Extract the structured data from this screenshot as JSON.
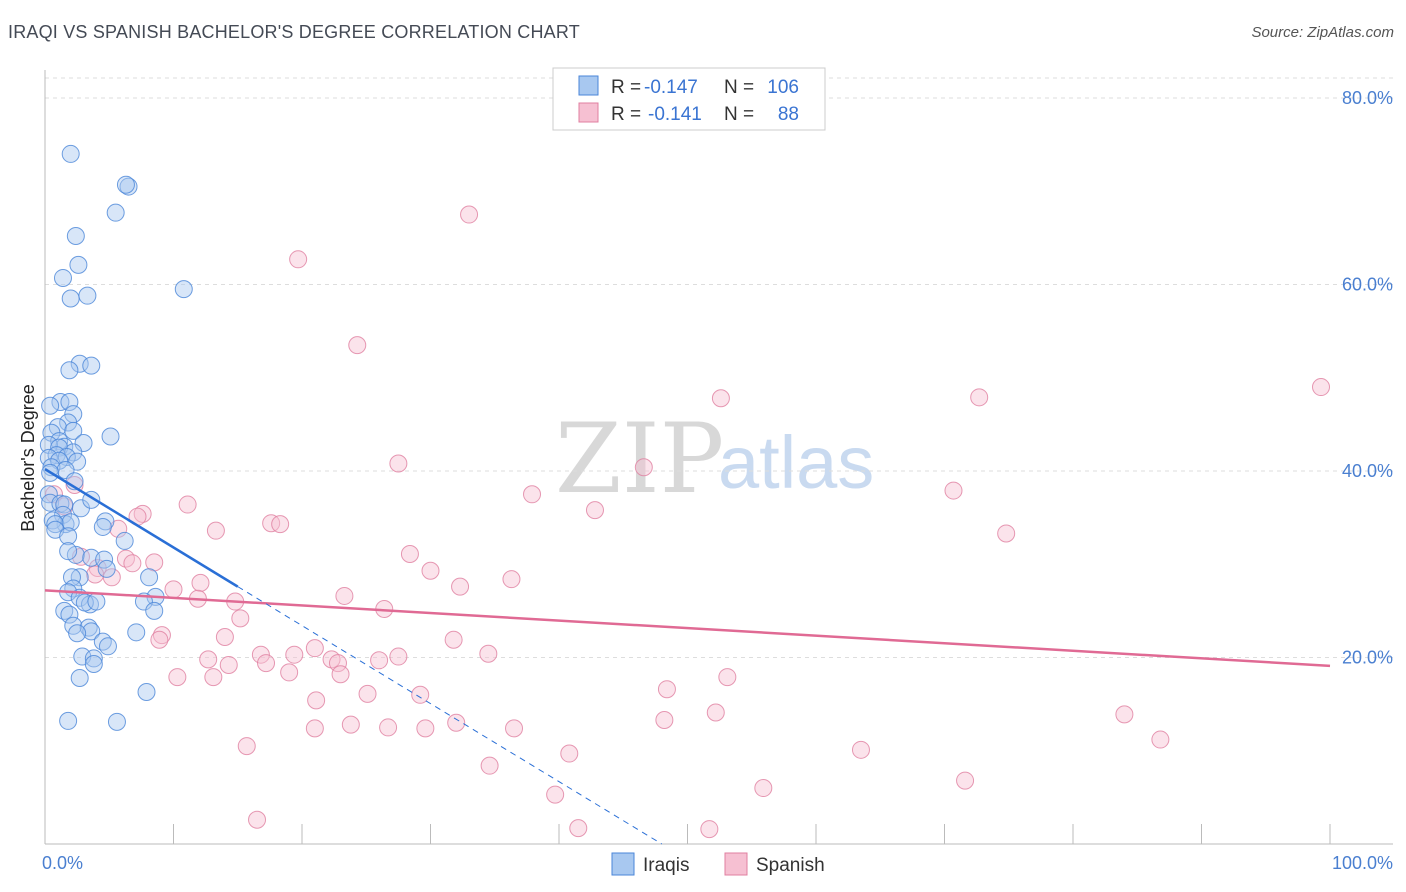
{
  "title": "IRAQI VS SPANISH BACHELOR'S DEGREE CORRELATION CHART",
  "source": "Source: ZipAtlas.com",
  "watermark": {
    "part1": "ZIP",
    "part2": "atlas"
  },
  "legend": {
    "iraqis": {
      "r_label": "R =",
      "r_value": "-0.147",
      "n_label": "N =",
      "n_value": "106"
    },
    "spanish": {
      "r_label": "R =",
      "r_value": "-0.141",
      "n_label": "N =",
      "n_value": "88"
    }
  },
  "colors": {
    "iraqis_fill": "#a8c8f0",
    "iraqis_stroke": "#4a86d8",
    "iraqis_line": "#2a6fd6",
    "spanish_fill": "#f6c0d2",
    "spanish_stroke": "#e07fa0",
    "spanish_line": "#e06a94",
    "grid": "#dddddd",
    "axis": "#bbbbbb"
  },
  "chart_data": {
    "type": "scatter",
    "title": "IRAQI VS SPANISH BACHELOR'S DEGREE CORRELATION CHART",
    "xlabel": "",
    "ylabel": "Bachelor's Degree",
    "xlim": [
      0,
      100
    ],
    "ylim": [
      0,
      83
    ],
    "y_ticks": [
      20,
      40,
      60,
      80
    ],
    "y_tick_labels": [
      "20.0%",
      "40.0%",
      "60.0%",
      "80.0%"
    ],
    "x_tick_labels": [
      "0.0%",
      "100.0%"
    ],
    "series": [
      {
        "name": "Iraqis",
        "trend": {
          "x_start": 0,
          "y_start": 40.2,
          "x_end": 15,
          "y_end": 27.6,
          "dashed_x_end": 48,
          "dashed_y_end": 0
        },
        "points": [
          [
            2,
            74
          ],
          [
            6.5,
            70.5
          ],
          [
            6.3,
            70.7
          ],
          [
            5.5,
            67.7
          ],
          [
            2.4,
            65.2
          ],
          [
            2.6,
            62.1
          ],
          [
            1.4,
            60.7
          ],
          [
            10.8,
            59.5
          ],
          [
            2,
            58.5
          ],
          [
            3.3,
            58.8
          ],
          [
            2.7,
            51.5
          ],
          [
            3.6,
            51.3
          ],
          [
            1.9,
            50.8
          ],
          [
            1.2,
            47.4
          ],
          [
            1.9,
            47.4
          ],
          [
            0.4,
            47
          ],
          [
            2.2,
            46.1
          ],
          [
            1.8,
            45.2
          ],
          [
            1,
            44.7
          ],
          [
            0.5,
            44.1
          ],
          [
            2.2,
            44.3
          ],
          [
            5.1,
            43.7
          ],
          [
            1.1,
            43.2
          ],
          [
            1.5,
            42.6
          ],
          [
            3,
            43
          ],
          [
            0.3,
            42.8
          ],
          [
            1.1,
            42.5
          ],
          [
            0.9,
            41.7
          ],
          [
            2.2,
            42
          ],
          [
            0.3,
            41.4
          ],
          [
            1.7,
            41.5
          ],
          [
            2.5,
            41
          ],
          [
            1.1,
            41.1
          ],
          [
            0.5,
            40.4
          ],
          [
            1.6,
            40.1
          ],
          [
            0.4,
            39.8
          ],
          [
            2.3,
            38.9
          ],
          [
            0.3,
            37.5
          ],
          [
            0.4,
            36.6
          ],
          [
            1.2,
            36.5
          ],
          [
            1.5,
            36.4
          ],
          [
            2.8,
            36
          ],
          [
            3.6,
            36.9
          ],
          [
            1.4,
            35.3
          ],
          [
            1.6,
            34.3
          ],
          [
            0.6,
            34.7
          ],
          [
            0.8,
            34.3
          ],
          [
            2,
            34.5
          ],
          [
            4.7,
            34.6
          ],
          [
            4.5,
            34
          ],
          [
            0.8,
            33.7
          ],
          [
            1.8,
            33
          ],
          [
            6.2,
            32.5
          ],
          [
            2.4,
            31
          ],
          [
            1.8,
            31.4
          ],
          [
            3.6,
            30.7
          ],
          [
            4.6,
            30.5
          ],
          [
            4.8,
            29.5
          ],
          [
            2.7,
            28.6
          ],
          [
            2.1,
            28.6
          ],
          [
            8.1,
            28.6
          ],
          [
            2.2,
            27.4
          ],
          [
            1.8,
            27
          ],
          [
            8.6,
            26.5
          ],
          [
            2.7,
            26.4
          ],
          [
            7.7,
            26
          ],
          [
            3.5,
            25.7
          ],
          [
            3.1,
            25.9
          ],
          [
            4,
            26
          ],
          [
            8.5,
            25
          ],
          [
            1.5,
            25
          ],
          [
            1.9,
            24.6
          ],
          [
            2.2,
            23.4
          ],
          [
            3.4,
            23.2
          ],
          [
            3.6,
            22.8
          ],
          [
            2.5,
            22.6
          ],
          [
            7.1,
            22.7
          ],
          [
            4.5,
            21.7
          ],
          [
            4.9,
            21.2
          ],
          [
            2.9,
            20.1
          ],
          [
            3.8,
            19.9
          ],
          [
            3.8,
            19.3
          ],
          [
            2.7,
            17.8
          ],
          [
            7.9,
            16.3
          ],
          [
            1.8,
            13.2
          ],
          [
            5.6,
            13.1
          ]
        ]
      },
      {
        "name": "Spanish",
        "trend": {
          "x_start": 0,
          "y_start": 27.2,
          "x_end": 100,
          "y_end": 19.1
        },
        "points": [
          [
            33,
            67.5
          ],
          [
            19.7,
            62.7
          ],
          [
            24.3,
            53.5
          ],
          [
            99.3,
            49
          ],
          [
            52.6,
            47.8
          ],
          [
            72.7,
            47.9
          ],
          [
            27.5,
            40.8
          ],
          [
            46.6,
            40.4
          ],
          [
            70.7,
            37.9
          ],
          [
            37.9,
            37.5
          ],
          [
            42.8,
            35.8
          ],
          [
            0.7,
            37.5
          ],
          [
            2.3,
            38.5
          ],
          [
            11.1,
            36.4
          ],
          [
            1.5,
            36.2
          ],
          [
            7.6,
            35.4
          ],
          [
            7.2,
            35.1
          ],
          [
            17.6,
            34.4
          ],
          [
            18.3,
            34.3
          ],
          [
            5.7,
            33.8
          ],
          [
            13.3,
            33.6
          ],
          [
            74.8,
            33.3
          ],
          [
            28.4,
            31.1
          ],
          [
            2.8,
            30.8
          ],
          [
            6.3,
            30.6
          ],
          [
            8.5,
            30.2
          ],
          [
            6.8,
            30.1
          ],
          [
            30,
            29.3
          ],
          [
            4.1,
            29.6
          ],
          [
            3.9,
            28.9
          ],
          [
            5.2,
            28.6
          ],
          [
            36.3,
            28.4
          ],
          [
            12.1,
            28
          ],
          [
            32.3,
            27.6
          ],
          [
            10,
            27.3
          ],
          [
            23.3,
            26.6
          ],
          [
            11.9,
            26.3
          ],
          [
            14.8,
            26
          ],
          [
            26.4,
            25.2
          ],
          [
            15.2,
            24.2
          ],
          [
            9.1,
            22.4
          ],
          [
            8.9,
            21.9
          ],
          [
            31.8,
            21.9
          ],
          [
            14,
            22.2
          ],
          [
            21,
            21
          ],
          [
            16.8,
            20.3
          ],
          [
            19.4,
            20.3
          ],
          [
            34.5,
            20.4
          ],
          [
            27.5,
            20.1
          ],
          [
            26,
            19.7
          ],
          [
            22.3,
            19.8
          ],
          [
            12.7,
            19.8
          ],
          [
            17.2,
            19.4
          ],
          [
            22.8,
            19.4
          ],
          [
            14.3,
            19.2
          ],
          [
            23,
            18.2
          ],
          [
            19,
            18.4
          ],
          [
            13.1,
            17.9
          ],
          [
            10.3,
            17.9
          ],
          [
            53.1,
            17.9
          ],
          [
            48.4,
            16.6
          ],
          [
            25.1,
            16.1
          ],
          [
            29.2,
            16
          ],
          [
            21.1,
            15.4
          ],
          [
            52.2,
            14.1
          ],
          [
            84,
            13.9
          ],
          [
            48.2,
            13.3
          ],
          [
            23.8,
            12.8
          ],
          [
            26.7,
            12.5
          ],
          [
            29.6,
            12.4
          ],
          [
            36.5,
            12.4
          ],
          [
            32,
            13
          ],
          [
            21,
            12.4
          ],
          [
            15.7,
            10.5
          ],
          [
            86.8,
            11.2
          ],
          [
            63.5,
            10.1
          ],
          [
            40.8,
            9.7
          ],
          [
            34.6,
            8.4
          ],
          [
            71.6,
            6.8
          ],
          [
            55.9,
            6
          ],
          [
            39.7,
            5.3
          ],
          [
            16.5,
            2.6
          ],
          [
            41.5,
            1.7
          ],
          [
            51.7,
            1.6
          ]
        ]
      }
    ]
  },
  "bottom_legend": {
    "iraqis": "Iraqis",
    "spanish": "Spanish"
  }
}
